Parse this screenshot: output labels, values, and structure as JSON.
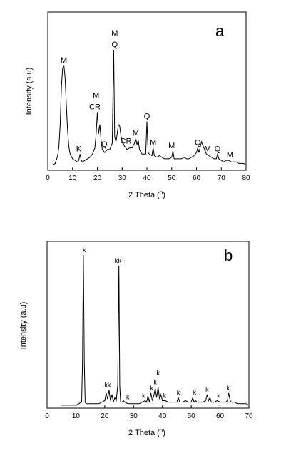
{
  "chart_data": [
    {
      "type": "line",
      "panel_letter": "a",
      "xlabel": "2 Theta (",
      "xlabel_unit": "o",
      "xlabel_close": ")",
      "ylabel": "Intensity (a.u)",
      "xlim": [
        0,
        80
      ],
      "x_ticks": [
        "0",
        "10",
        "20",
        "30",
        "40",
        "50",
        "60",
        "70",
        "80"
      ],
      "grid": false,
      "series": [
        {
          "x": [
            2,
            3,
            4,
            4.5,
            5,
            5.5,
            6,
            6.5,
            7,
            7.5,
            8,
            8.5,
            9,
            10,
            11,
            12,
            12.5,
            13,
            13.5,
            14,
            15,
            16,
            17,
            18,
            19,
            19.5,
            20,
            20.5,
            21,
            21.5,
            22,
            23,
            24,
            25,
            26,
            26.6,
            27,
            27.5,
            28,
            28.5,
            29,
            29.5,
            30,
            31,
            32,
            33,
            34,
            35,
            35.5,
            36,
            36.5,
            37,
            38,
            39,
            39.5,
            40,
            40.5,
            41,
            42,
            42.5,
            43,
            44,
            45,
            46,
            47,
            48,
            49,
            50,
            50.5,
            51,
            52,
            53,
            54,
            55,
            56,
            57,
            58,
            59,
            60,
            60.5,
            61,
            62,
            63,
            64,
            65,
            66,
            67,
            68,
            68.5,
            69,
            70,
            71,
            72,
            73,
            74,
            75,
            76,
            77,
            78,
            79,
            80
          ],
          "y": [
            2,
            3,
            8,
            14,
            28,
            52,
            64,
            66,
            58,
            40,
            24,
            14,
            9,
            6,
            5,
            4,
            5,
            9,
            5,
            4,
            5,
            6,
            7,
            9,
            13,
            22,
            36,
            22,
            28,
            18,
            12,
            10,
            12,
            12,
            16,
            76,
            20,
            17,
            22,
            28,
            27,
            21,
            17,
            14,
            12,
            13,
            13,
            16,
            19,
            15,
            18,
            12,
            9,
            9,
            9,
            30,
            10,
            9,
            8,
            13,
            8,
            7,
            8,
            7,
            6,
            6,
            6,
            7,
            11,
            6,
            6,
            6,
            6,
            7,
            6,
            6,
            7,
            8,
            10,
            13,
            10,
            17,
            13,
            9,
            8,
            7,
            6,
            6,
            9,
            6,
            5,
            4,
            5,
            5,
            4,
            4,
            4,
            3,
            3,
            3,
            2
          ]
        }
      ],
      "annotations": [
        {
          "text": "M",
          "x": 6.5
        },
        {
          "text": "K",
          "x": 12.5
        },
        {
          "text": "M",
          "x": 19.5,
          "row": 2
        },
        {
          "text": "CR",
          "x": 19.0
        },
        {
          "text": "Q",
          "x": 22.8
        },
        {
          "text": "M",
          "x": 27.0,
          "row": 2
        },
        {
          "text": "Q",
          "x": 27.0
        },
        {
          "text": "CR",
          "x": 31.5
        },
        {
          "text": "M",
          "x": 35.5
        },
        {
          "text": "Q",
          "x": 40.0
        },
        {
          "text": "M",
          "x": 42.5
        },
        {
          "text": "M",
          "x": 50.0
        },
        {
          "text": "Q",
          "x": 60.5
        },
        {
          "text": "M",
          "x": 64.5
        },
        {
          "text": "Q",
          "x": 68.5
        },
        {
          "text": "M",
          "x": 73.5
        }
      ]
    },
    {
      "type": "line",
      "panel_letter": "b",
      "xlabel": "2 Theta (",
      "xlabel_unit": "o",
      "xlabel_close": ")",
      "ylabel": "Intensity (a.u)",
      "xlim": [
        0,
        70
      ],
      "x_ticks": [
        "0",
        "10",
        "20",
        "30",
        "40",
        "50",
        "60",
        "70"
      ],
      "grid": false,
      "series": [
        {
          "x": [
            5,
            6,
            7,
            8,
            9,
            10,
            11,
            12,
            12.3,
            12.6,
            12.9,
            13.2,
            13.5,
            14,
            15,
            16,
            17,
            18,
            19,
            20,
            20.5,
            21,
            21.5,
            22,
            22.5,
            23,
            23.5,
            24,
            24.5,
            24.9,
            25.2,
            25.5,
            26,
            26.5,
            27,
            28,
            29,
            30,
            31,
            32,
            33,
            34,
            34.5,
            35,
            35.5,
            36,
            36.5,
            37,
            37.5,
            38,
            38.5,
            39,
            39.5,
            40,
            41,
            42,
            43,
            44,
            45,
            45.5,
            46,
            47,
            48,
            49,
            50,
            50.5,
            51,
            51.5,
            52,
            53,
            54,
            55,
            55.5,
            56,
            56.5,
            57,
            58,
            59,
            60,
            61,
            62,
            62.5,
            63,
            63.5,
            64,
            65,
            66,
            67,
            68,
            69,
            70
          ],
          "y": [
            1,
            1,
            1,
            1,
            1,
            1,
            2,
            3,
            30,
            100,
            30,
            3,
            2,
            2,
            2,
            2,
            2,
            2,
            3,
            4,
            9,
            5,
            11,
            4,
            8,
            3,
            6,
            4,
            14,
            93,
            14,
            3,
            3,
            4,
            3,
            2,
            2,
            2,
            2,
            2,
            3,
            4,
            3,
            7,
            3,
            9,
            4,
            7,
            12,
            6,
            13,
            5,
            8,
            4,
            4,
            3,
            3,
            3,
            3,
            6,
            3,
            3,
            4,
            3,
            3,
            6,
            3,
            4,
            3,
            3,
            3,
            4,
            8,
            4,
            6,
            3,
            3,
            4,
            3,
            3,
            3,
            4,
            9,
            4,
            3,
            3,
            2,
            2,
            2,
            2,
            1
          ]
        }
      ],
      "annotations": [
        {
          "text": "k",
          "x": 12.9
        },
        {
          "text": "k",
          "x": 25.2
        },
        {
          "text": "kk",
          "x": 21.0
        },
        {
          "text": "k",
          "x": 24.0
        },
        {
          "text": "k",
          "x": 28.0
        },
        {
          "text": "k",
          "x": 33.5
        },
        {
          "text": "k",
          "x": 36.3
        },
        {
          "text": "k",
          "x": 37.5
        },
        {
          "text": "k",
          "x": 38.5,
          "row": 2
        },
        {
          "text": "k",
          "x": 40.8
        },
        {
          "text": "k",
          "x": 45.5
        },
        {
          "text": "k",
          "x": 51.2
        },
        {
          "text": "k",
          "x": 55.5
        },
        {
          "text": "k",
          "x": 59.5
        },
        {
          "text": "k",
          "x": 62.8
        }
      ]
    }
  ]
}
